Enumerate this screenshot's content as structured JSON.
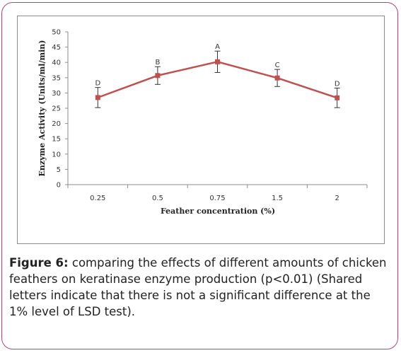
{
  "chart_data": {
    "type": "line",
    "categories": [
      "0.25",
      "0.5",
      "0.75",
      "1.5",
      "2"
    ],
    "series": [
      {
        "values": [
          28.5,
          35.7,
          40.2,
          34.9,
          28.4
        ],
        "color": "#c0504d"
      }
    ],
    "error_bars": [
      3.3,
      2.9,
      3.5,
      2.8,
      3.2
    ],
    "significance_letters": [
      "D",
      "B",
      "A",
      "C",
      "D"
    ],
    "xlabel": "Feather concentration (%)",
    "ylabel": "Enzyme Activity (Units/ml/min)",
    "ylim": [
      0,
      50
    ],
    "yticks": [
      "0",
      "5",
      "10",
      "15",
      "20",
      "25",
      "30",
      "35",
      "40",
      "45",
      "50"
    ],
    "grid": false,
    "legend": false
  },
  "caption": {
    "label": "Figure 6:",
    "text": " comparing the effects of different amounts of chicken feathers on keratinase enzyme production (p<0.01) (Shared letters indicate that there is not a significant difference at the 1% level of LSD test)."
  },
  "colors": {
    "frame": "#b0457a",
    "line": "#c0504d",
    "axis": "#8c8c8c"
  }
}
